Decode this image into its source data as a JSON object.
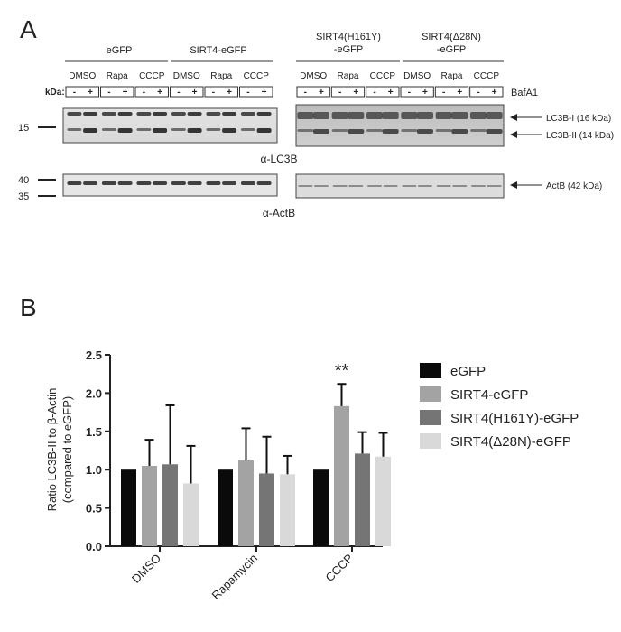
{
  "panel_a": {
    "letter": "A",
    "kda_label": "kDa:",
    "top_groups": [
      "eGFP",
      "SIRT4-eGFP"
    ],
    "top_groups_right": [
      [
        "SIRT4(H161Y)",
        "-eGFP"
      ],
      [
        "SIRT4(Δ28N)",
        "-eGFP"
      ]
    ],
    "treatments": [
      "DMSO",
      "Rapa",
      "CCCP"
    ],
    "bafa1_signs": [
      "-",
      "+"
    ],
    "bafa1_label": "BafA1",
    "marker_15": "15",
    "marker_40": "40",
    "marker_35": "35",
    "band_lc3b_i": "LC3B-I (16 kDa)",
    "band_lc3b_ii": "LC3B-II (14 kDa)",
    "band_actb": "ActB (42 kDa)",
    "antibody_lc3b": "α-LC3B",
    "antibody_actb": "α-ActB"
  },
  "panel_b": {
    "letter": "B",
    "significance": "**"
  },
  "chart_data": {
    "type": "bar",
    "categories": [
      "DMSO",
      "Rapamycin",
      "CCCP"
    ],
    "ylabel_line1": "Ratio LC3B-II to β-Actin",
    "ylabel_line2": "(compared to eGFP)",
    "ylim": [
      0.0,
      2.5
    ],
    "yticks": [
      "0.0",
      "0.5",
      "1.0",
      "1.5",
      "2.0",
      "2.5"
    ],
    "series": [
      {
        "name": "eGFP",
        "color": "#0a0a0a",
        "values": [
          1.0,
          1.0,
          1.0
        ],
        "errors": [
          0,
          0,
          0
        ]
      },
      {
        "name": "SIRT4-eGFP",
        "color": "#a3a3a3",
        "values": [
          1.05,
          1.12,
          1.83
        ],
        "errors": [
          0.34,
          0.42,
          0.29
        ]
      },
      {
        "name": "SIRT4(H161Y)-eGFP",
        "color": "#757575",
        "values": [
          1.07,
          0.95,
          1.21
        ],
        "errors": [
          0.77,
          0.48,
          0.28
        ]
      },
      {
        "name": "SIRT4(Δ28N)-eGFP",
        "color": "#d9d9d9",
        "values": [
          0.82,
          0.94,
          1.17
        ],
        "errors": [
          0.49,
          0.24,
          0.31
        ]
      }
    ]
  }
}
